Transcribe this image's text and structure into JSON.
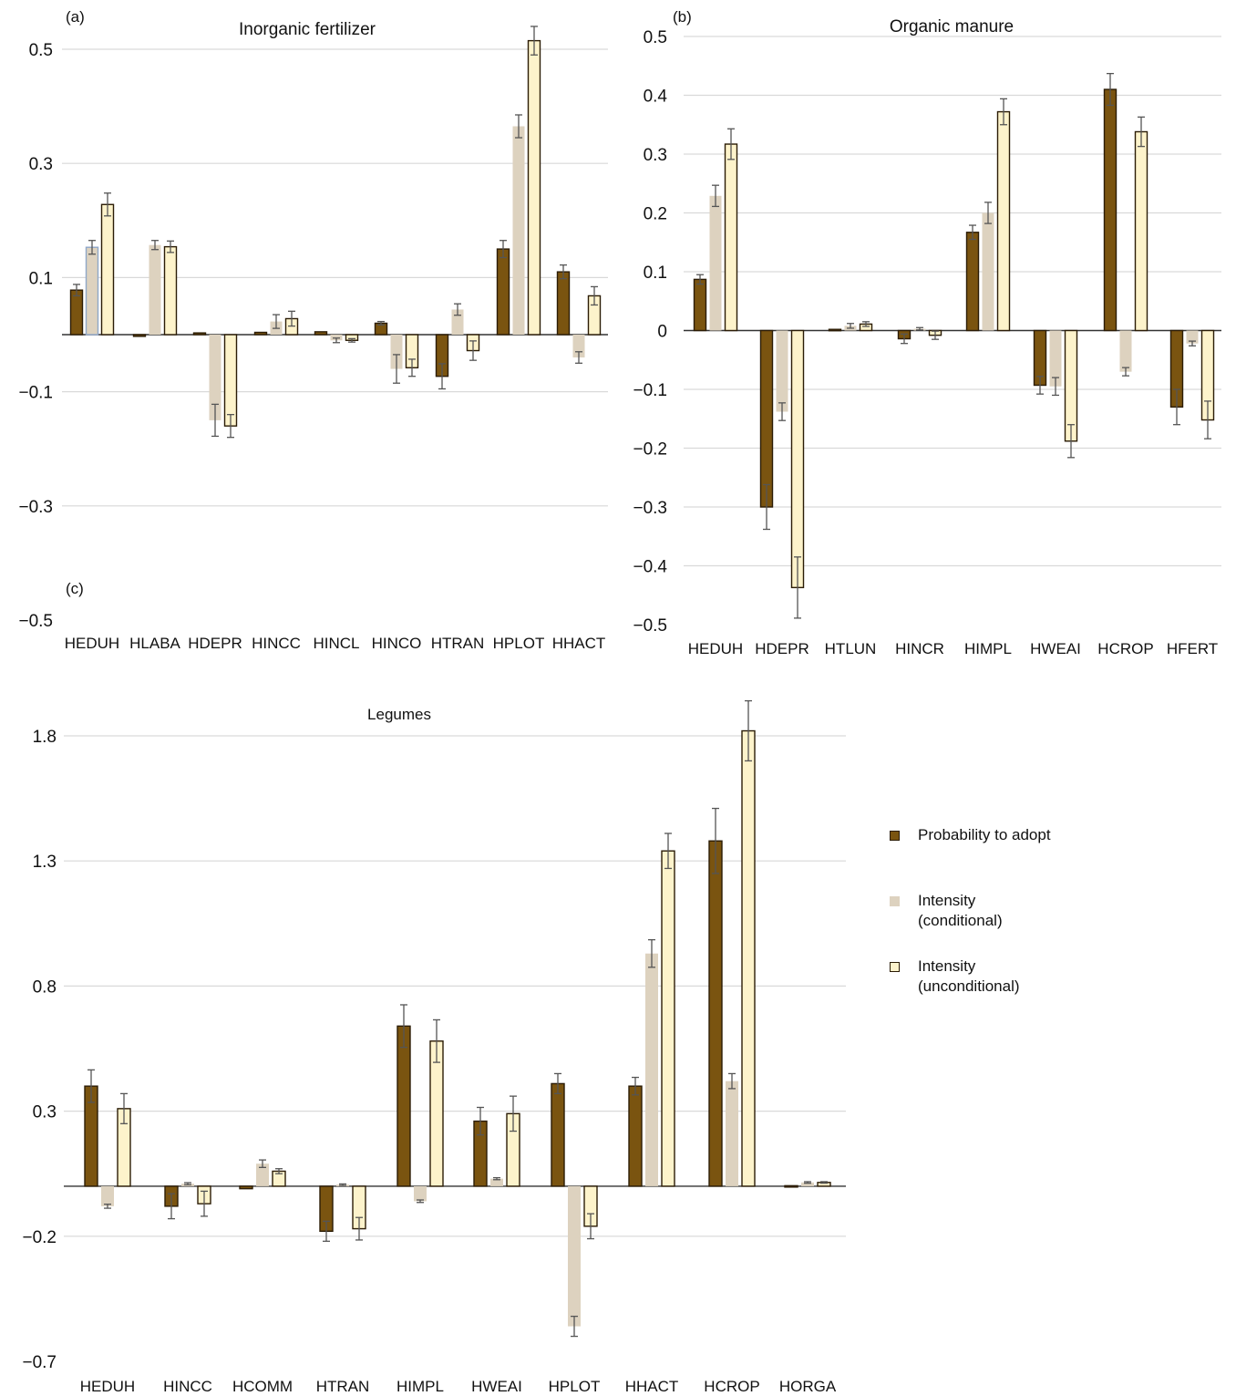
{
  "colors": {
    "probability": "#7a5410",
    "conditional": "#ddd2bf",
    "unconditional": "#fdf3cb",
    "edge": "#2b1c06",
    "highlight_edge": "#8fa7c9",
    "grid": "#d9d9d9",
    "error_bar": "#555555"
  },
  "legend": [
    {
      "label": "Probability to adopt",
      "color": "#7a5410"
    },
    {
      "label": "Intensity\n(conditional)",
      "color": "#ddd2bf"
    },
    {
      "label": "Intensity\n(unconditional)",
      "color": "#fdf3cb"
    }
  ],
  "chart_data": [
    {
      "panel_label": "(a)",
      "title": "Inorganic fertilizer",
      "type": "bar",
      "categories": [
        "HEDUH",
        "HLABA",
        "HDEPR",
        "HINCC",
        "HINCL",
        "HINCO",
        "HTRAN",
        "HPLOT",
        "HHACT"
      ],
      "yticks": [
        "0.5",
        "0.3",
        "0.1",
        "−0.1",
        "−0.3",
        "−0.5"
      ],
      "ylim": [
        -0.5,
        0.52
      ],
      "grid": true,
      "series": [
        {
          "name": "Probability to adopt",
          "values": [
            0.078,
            -0.003,
            0.003,
            0.004,
            0.005,
            0.02,
            -0.073,
            0.15,
            0.11
          ],
          "errors": [
            0.01,
            0.0,
            0.0,
            0.0,
            0.0,
            0.003,
            0.022,
            0.015,
            0.012
          ]
        },
        {
          "name": "Intensity (conditional)",
          "values": [
            0.153,
            0.157,
            -0.15,
            0.023,
            -0.01,
            -0.06,
            0.044,
            0.365,
            -0.04
          ],
          "errors": [
            0.012,
            0.008,
            0.028,
            0.012,
            0.004,
            0.025,
            0.01,
            0.02,
            0.01
          ]
        },
        {
          "name": "Intensity (unconditional)",
          "values": [
            0.228,
            0.154,
            -0.16,
            0.028,
            -0.01,
            -0.058,
            -0.028,
            0.515,
            0.068
          ],
          "errors": [
            0.02,
            0.01,
            0.02,
            0.013,
            0.003,
            0.015,
            0.017,
            0.025,
            0.016
          ]
        }
      ]
    },
    {
      "panel_label": "(b)",
      "title": "Organic manure",
      "type": "bar",
      "categories": [
        "HEDUH",
        "HDEPR",
        "HTLUN",
        "HINCR",
        "HIMPL",
        "HWEAI",
        "HCROP",
        "HFERT"
      ],
      "yticks": [
        "0.5",
        "0.4",
        "0.3",
        "0.2",
        "0.1",
        "0",
        "−0.1",
        "−0.2",
        "−0.3",
        "−0.4",
        "−0.5"
      ],
      "ylim": [
        -0.5,
        0.5
      ],
      "grid": true,
      "series": [
        {
          "name": "Probability to adopt",
          "values": [
            0.087,
            -0.3,
            0.002,
            -0.014,
            0.167,
            -0.093,
            0.41,
            -0.13
          ],
          "errors": [
            0.008,
            0.038,
            0.0,
            0.008,
            0.012,
            0.015,
            0.027,
            0.03
          ]
        },
        {
          "name": "Intensity (conditional)",
          "values": [
            0.229,
            -0.138,
            0.008,
            0.003,
            0.2,
            -0.095,
            -0.07,
            -0.022
          ],
          "errors": [
            0.018,
            0.015,
            0.004,
            0.002,
            0.018,
            0.015,
            0.007,
            0.004
          ]
        },
        {
          "name": "Intensity (unconditional)",
          "values": [
            0.317,
            -0.437,
            0.011,
            -0.008,
            0.372,
            -0.188,
            0.338,
            -0.152
          ],
          "errors": [
            0.026,
            0.052,
            0.004,
            0.007,
            0.022,
            0.028,
            0.025,
            0.032
          ]
        }
      ]
    },
    {
      "panel_label": "(c)",
      "title": "Legumes",
      "type": "bar",
      "categories": [
        "HEDUH",
        "HINCC",
        "HCOMM",
        "HTRAN",
        "HIMPL",
        "HWEAI",
        "HPLOT",
        "HHACT",
        "HCROP",
        "HORGA"
      ],
      "yticks": [
        "1.8",
        "1.3",
        "0.8",
        "0.3",
        "−0.2",
        "−0.7"
      ],
      "ylim": [
        -0.7,
        1.92
      ],
      "grid": true,
      "series": [
        {
          "name": "Probability to adopt",
          "values": [
            0.4,
            -0.08,
            -0.01,
            -0.18,
            0.64,
            0.26,
            0.41,
            0.4,
            1.38,
            0.002
          ],
          "errors": [
            0.065,
            0.05,
            0.0,
            0.04,
            0.085,
            0.055,
            0.04,
            0.035,
            0.13,
            0.0
          ]
        },
        {
          "name": "Intensity (conditional)",
          "values": [
            -0.08,
            0.01,
            0.09,
            0.006,
            -0.06,
            0.03,
            -0.56,
            0.93,
            0.42,
            0.015
          ],
          "errors": [
            0.008,
            0.004,
            0.015,
            0.003,
            0.005,
            0.004,
            0.04,
            0.055,
            0.03,
            0.003
          ]
        },
        {
          "name": "Intensity (unconditional)",
          "values": [
            0.31,
            -0.07,
            0.06,
            -0.17,
            0.58,
            0.29,
            -0.16,
            1.34,
            1.82,
            0.015
          ],
          "errors": [
            0.06,
            0.05,
            0.01,
            0.045,
            0.085,
            0.07,
            0.05,
            0.07,
            0.12,
            0.003
          ]
        }
      ]
    }
  ]
}
